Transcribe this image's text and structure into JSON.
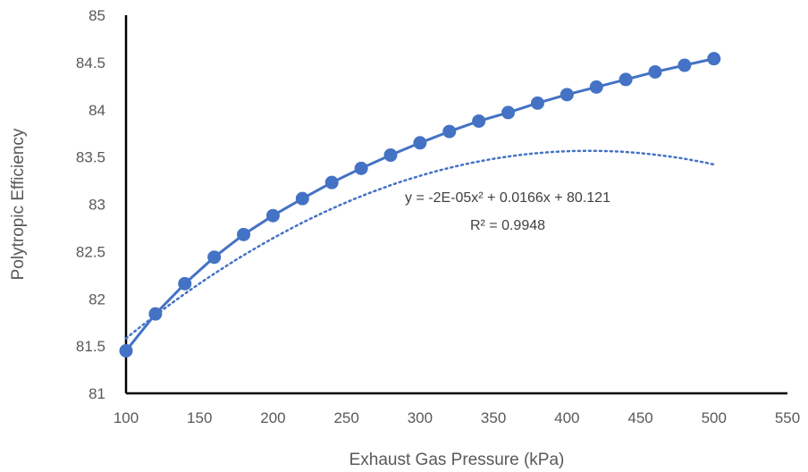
{
  "chart_data": {
    "type": "scatter",
    "title": "",
    "xlabel": "Exhaust Gas Pressure (kPa)",
    "ylabel": "Polytropic Efficiency",
    "xlim": [
      100,
      550
    ],
    "ylim": [
      81,
      85
    ],
    "x_ticks": [
      "100",
      "150",
      "200",
      "250",
      "300",
      "350",
      "400",
      "450",
      "500",
      "550"
    ],
    "y_ticks": [
      "81",
      "81.5",
      "82",
      "82.5",
      "83",
      "83.5",
      "84",
      "84.5",
      "85"
    ],
    "grid": false,
    "legend": "none",
    "series": [
      {
        "color": "#4472C4",
        "x": [
          100,
          120,
          140,
          160,
          180,
          200,
          220,
          240,
          260,
          280,
          300,
          320,
          340,
          360,
          380,
          400,
          420,
          440,
          460,
          480,
          500
        ],
        "y": [
          81.45,
          81.84,
          82.16,
          82.44,
          82.68,
          82.88,
          83.06,
          83.23,
          83.38,
          83.52,
          83.65,
          83.77,
          83.88,
          83.97,
          84.07,
          84.16,
          84.24,
          84.32,
          84.4,
          84.47,
          84.54
        ]
      }
    ],
    "trendline": {
      "type": "polynomial",
      "coefficients": {
        "a": -2e-05,
        "b": 0.0166,
        "c": 80.121
      },
      "x_range": [
        100,
        500
      ],
      "style": "dotted",
      "equation_text": "y = -2E-05x² + 0.0166x + 80.121",
      "r2_text": "R² = 0.9948"
    }
  }
}
